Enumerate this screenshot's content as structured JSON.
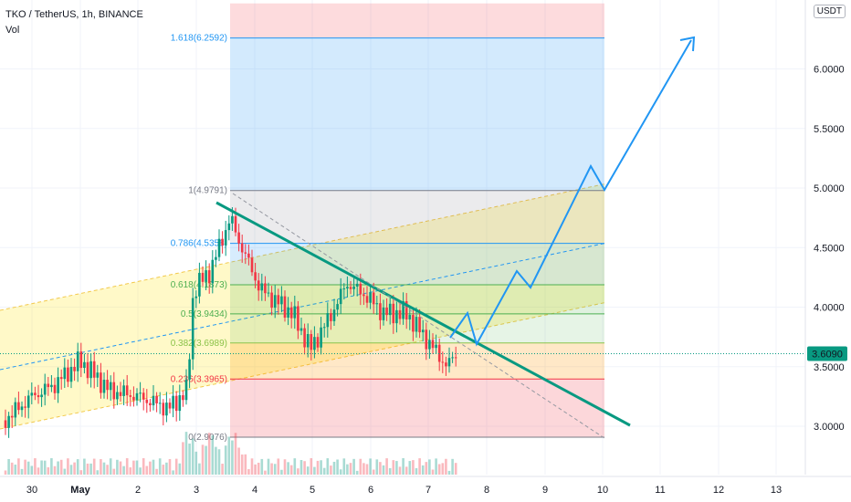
{
  "header": {
    "title": "TKO / TetherUS, 1h, BINANCE",
    "volume_label": "Vol",
    "currency": "USDT"
  },
  "price_axis": {
    "labels": [
      "6.0000",
      "5.5000",
      "5.0000",
      "4.5000",
      "4.0000",
      "3.5000",
      "3.0000"
    ],
    "values": [
      6.0,
      5.5,
      5.0,
      4.5,
      4.0,
      3.5,
      3.0
    ],
    "current_price": "3.6090",
    "current_value": 3.609
  },
  "time_axis": {
    "labels": [
      "30",
      "May",
      "2",
      "3",
      "4",
      "5",
      "6",
      "7",
      "8",
      "9",
      "10",
      "11",
      "12",
      "13"
    ]
  },
  "fib_levels": [
    {
      "label": "1.618(6.2592)",
      "value": 6.2592,
      "color": "#2196f3"
    },
    {
      "label": "1(4.9791)",
      "value": 4.9791,
      "color": "#787b86"
    },
    {
      "label": "0.786(4.5358)",
      "value": 4.5358,
      "color": "#2196f3"
    },
    {
      "label": "0.618(4.1873)",
      "value": 4.1873,
      "color": "#4caf50"
    },
    {
      "label": "0.5(3.9434)",
      "value": 3.9434,
      "color": "#4caf50"
    },
    {
      "label": "0.382(3.6989)",
      "value": 3.6989,
      "color": "#8bc34a"
    },
    {
      "label": "0.236(3.3965)",
      "value": 3.3965,
      "color": "#f23645"
    },
    {
      "label": "0(2.9076)",
      "value": 2.9076,
      "color": "#787b86"
    }
  ],
  "colors": {
    "trendline": "#089981",
    "projection": "#2196f3",
    "channel": "#ffeb3b",
    "candle_up": "#089981",
    "candle_down": "#f23645",
    "price_tag": "#089981"
  },
  "chart_data": {
    "type": "candlestick",
    "symbol": "TKO / TetherUS",
    "interval": "1h",
    "exchange": "BINANCE",
    "y_axis": {
      "ticks": [
        3.0,
        3.5,
        4.0,
        4.5,
        5.0,
        5.5,
        6.0
      ],
      "range": [
        2.55,
        6.55
      ]
    },
    "x_ticks": [
      "30",
      "May",
      "2",
      "3",
      "4",
      "5",
      "6",
      "7",
      "8",
      "9",
      "10",
      "11",
      "12",
      "13"
    ],
    "last_price": 3.609,
    "fibonacci": [
      {
        "ratio": 1.618,
        "price": 6.2592
      },
      {
        "ratio": 1,
        "price": 4.9791
      },
      {
        "ratio": 0.786,
        "price": 4.5358
      },
      {
        "ratio": 0.618,
        "price": 4.1873
      },
      {
        "ratio": 0.5,
        "price": 3.9434
      },
      {
        "ratio": 0.382,
        "price": 3.6989
      },
      {
        "ratio": 0.236,
        "price": 3.3965
      },
      {
        "ratio": 0,
        "price": 2.9076
      }
    ],
    "price_path_approx": [
      {
        "x": "30",
        "price": 3.25
      },
      {
        "x": "May",
        "price": 3.55
      },
      {
        "x": "2",
        "price": 3.25
      },
      {
        "x": "3",
        "price": 3.15
      },
      {
        "x": "3",
        "price": 4.3
      },
      {
        "x": "4",
        "price": 4.9
      },
      {
        "x": "4",
        "price": 4.0
      },
      {
        "x": "5",
        "price": 3.65
      },
      {
        "x": "6",
        "price": 4.25
      },
      {
        "x": "6",
        "price": 3.95
      },
      {
        "x": "7",
        "price": 3.6
      }
    ],
    "projection_path": [
      {
        "x": "7.7",
        "price": 3.7
      },
      {
        "x": "7.9",
        "price": 3.95
      },
      {
        "x": "8",
        "price": 3.7
      },
      {
        "x": "8.5",
        "price": 4.3
      },
      {
        "x": "8.8",
        "price": 4.15
      },
      {
        "x": "9.6",
        "price": 5.2
      },
      {
        "x": "10",
        "price": 5.0
      },
      {
        "x": "11.6",
        "price": 6.25
      }
    ]
  }
}
